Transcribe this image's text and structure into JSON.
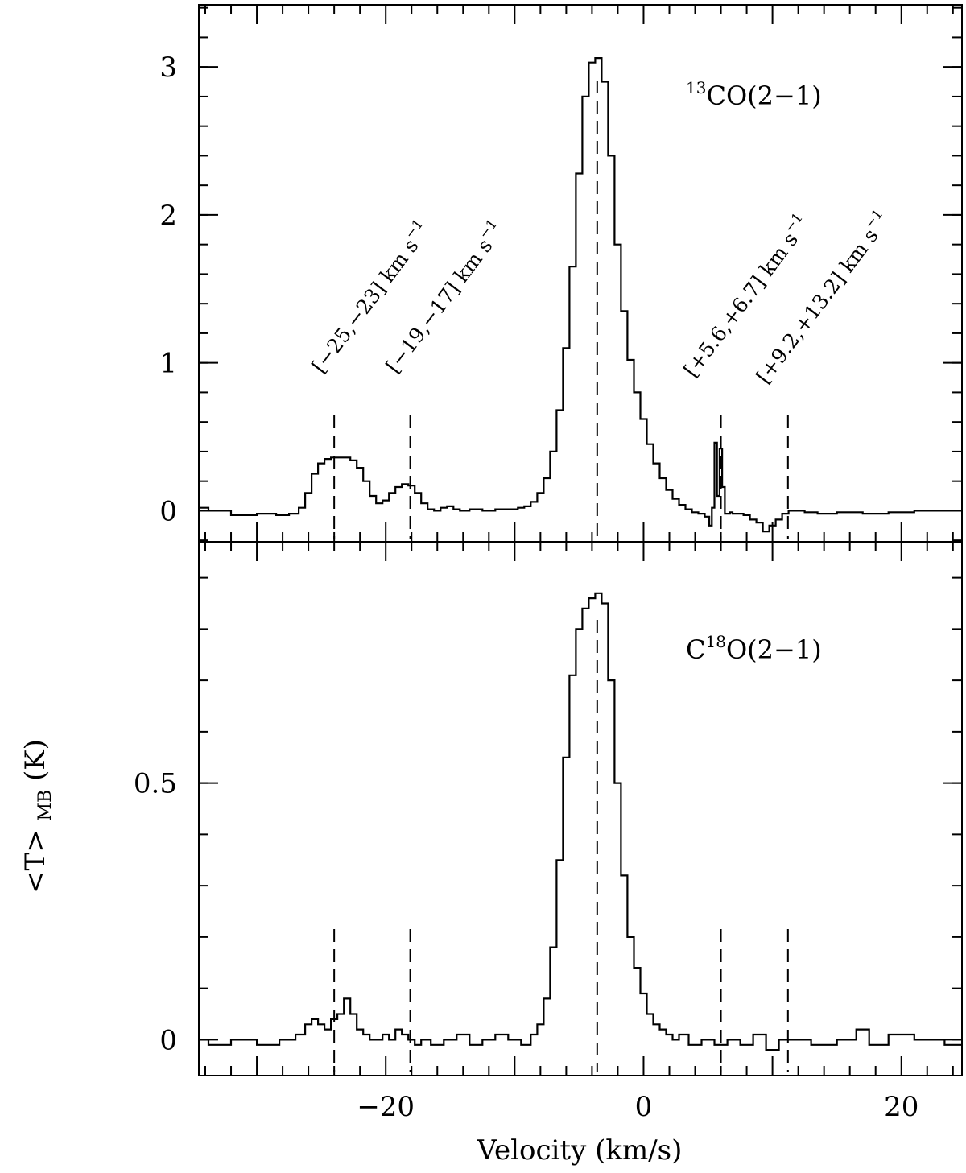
{
  "chart_data": {
    "type": "line",
    "drawstyle": "steps-mid",
    "xlabel": "Velocity (km/s)",
    "ylabel": {
      "main": "<T>",
      "subscript": "MB",
      "unit": "(K)"
    },
    "xlim": [
      -34.5,
      24.7
    ],
    "x_ticks": [
      -20,
      0,
      20
    ],
    "x_tick_labels": [
      "−20",
      "0",
      "20"
    ],
    "marker_velocities": [
      -24.0,
      -18.1,
      -3.6,
      6.0,
      11.2
    ],
    "range_labels": [
      "[−25,−23] km s",
      "[−19,−17] km s",
      "[+5.6,+6.7] km s",
      "[+9.2,+13.2] km s"
    ],
    "range_label_superscript": "−1",
    "panels": [
      {
        "label": {
          "pre": "",
          "sup": "13",
          "post": "CO(2−1)",
          "sup_first": true
        },
        "ylim": [
          -0.21,
          3.42
        ],
        "y_ticks": [
          0,
          1,
          2,
          3
        ],
        "y_tick_labels": [
          "0",
          "1",
          "2",
          "3"
        ],
        "y_minor_step": 0.2,
        "series": [
          {
            "x": [
              -34.5,
              -33,
              -31,
              -29,
              -28,
              -27,
              -26.5,
              -26,
              -25.5,
              -25,
              -24.5,
              -24,
              -23.5,
              -23,
              -22.5,
              -22,
              -21.5,
              -21,
              -20.5,
              -20,
              -19.5,
              -19,
              -18.5,
              -18,
              -17.5,
              -17,
              -16.5,
              -16,
              -15.5,
              -15,
              -14.5,
              -14,
              -13,
              -12,
              -11,
              -10,
              -9.5,
              -9,
              -8.5,
              -8,
              -7.5,
              -7,
              -6.5,
              -6,
              -5.5,
              -5,
              -4.5,
              -4,
              -3.5,
              -3,
              -2.5,
              -2,
              -1.5,
              -1,
              -0.5,
              0,
              0.5,
              1,
              1.5,
              2,
              2.5,
              3,
              3.5,
              4,
              4.5,
              5,
              5.2,
              5.4,
              5.6,
              5.8,
              6.0,
              6.2,
              6.4,
              6.6,
              6.8,
              7.0,
              7.5,
              8,
              8.5,
              9,
              9.5,
              10,
              10.5,
              11,
              11.5,
              12,
              13,
              14,
              16,
              18,
              20,
              22,
              24.7
            ],
            "y": [
              0.02,
              0.0,
              -0.03,
              -0.02,
              -0.03,
              -0.02,
              0.02,
              0.12,
              0.25,
              0.32,
              0.35,
              0.36,
              0.36,
              0.36,
              0.34,
              0.29,
              0.2,
              0.1,
              0.05,
              0.07,
              0.12,
              0.16,
              0.18,
              0.17,
              0.12,
              0.05,
              0.01,
              0.0,
              0.02,
              0.03,
              0.01,
              0.0,
              0.01,
              0.0,
              0.01,
              0.01,
              0.02,
              0.03,
              0.06,
              0.12,
              0.22,
              0.4,
              0.68,
              1.1,
              1.65,
              2.28,
              2.8,
              3.03,
              3.06,
              2.9,
              2.4,
              1.8,
              1.35,
              1.02,
              0.8,
              0.62,
              0.45,
              0.32,
              0.22,
              0.14,
              0.08,
              0.04,
              0.01,
              -0.01,
              -0.02,
              -0.04,
              -0.1,
              0.02,
              0.46,
              0.1,
              0.42,
              0.16,
              -0.02,
              -0.02,
              -0.01,
              -0.02,
              -0.02,
              -0.03,
              -0.06,
              -0.08,
              -0.14,
              -0.1,
              -0.06,
              -0.02,
              0.0,
              0.0,
              -0.01,
              -0.02,
              -0.01,
              -0.02,
              -0.01,
              0.0,
              0.0
            ]
          }
        ]
      },
      {
        "label": {
          "pre": "C",
          "sup": "18",
          "post": "O(2−1)",
          "sup_first": false
        },
        "ylim": [
          -0.07,
          0.97
        ],
        "y_ticks": [
          0,
          0.5
        ],
        "y_tick_labels": [
          "0",
          "0.5"
        ],
        "y_minor_step": 0.1,
        "series": [
          {
            "x": [
              -34.5,
              -33,
              -31,
              -29,
              -27.5,
              -26.5,
              -26,
              -25.5,
              -25,
              -24.5,
              -24,
              -23.5,
              -23,
              -22.5,
              -22,
              -21.5,
              -21,
              -20.5,
              -20,
              -19.5,
              -19,
              -18.5,
              -18,
              -17.5,
              -17,
              -16,
              -15,
              -14,
              -13,
              -12,
              -11,
              -10,
              -9,
              -8.5,
              -8,
              -7.5,
              -7,
              -6.5,
              -6,
              -5.5,
              -5,
              -4.5,
              -4,
              -3.5,
              -3,
              -2.5,
              -2,
              -1.5,
              -1,
              -0.5,
              0,
              0.5,
              1,
              1.5,
              2,
              2.5,
              3,
              4,
              5,
              6,
              7,
              8,
              9,
              10,
              11,
              12,
              14,
              16,
              17,
              18,
              20,
              22,
              24.7
            ],
            "y": [
              0.0,
              -0.01,
              0.0,
              -0.01,
              0.0,
              0.01,
              0.03,
              0.04,
              0.03,
              0.02,
              0.04,
              0.05,
              0.08,
              0.05,
              0.02,
              0.01,
              0.0,
              0.0,
              0.01,
              0.0,
              0.02,
              0.01,
              0.0,
              -0.01,
              0.0,
              -0.01,
              0.0,
              0.01,
              -0.01,
              0.0,
              0.01,
              0.0,
              -0.01,
              0.01,
              0.03,
              0.08,
              0.18,
              0.35,
              0.55,
              0.71,
              0.8,
              0.84,
              0.86,
              0.87,
              0.85,
              0.7,
              0.5,
              0.32,
              0.2,
              0.14,
              0.09,
              0.05,
              0.03,
              0.02,
              0.01,
              0.0,
              0.01,
              -0.01,
              0.0,
              -0.01,
              0.0,
              -0.01,
              0.01,
              -0.02,
              0.0,
              0.0,
              -0.01,
              0.0,
              0.02,
              -0.01,
              0.01,
              0.0,
              -0.01
            ]
          }
        ]
      }
    ]
  }
}
